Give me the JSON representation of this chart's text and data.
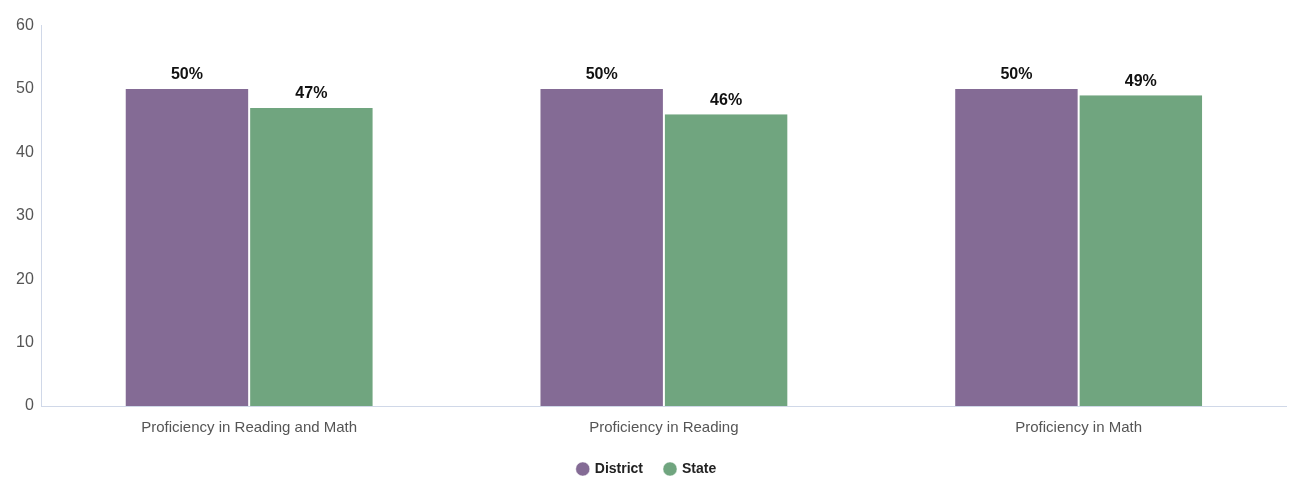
{
  "chart_data": {
    "type": "bar",
    "categories": [
      "Proficiency in Reading and Math",
      "Proficiency in Reading",
      "Proficiency in Math"
    ],
    "series": [
      {
        "name": "District",
        "color": "#846b95",
        "values": [
          50,
          50,
          50
        ],
        "value_labels": [
          "50%",
          "50%",
          "50%"
        ]
      },
      {
        "name": "State",
        "color": "#70a57f",
        "values": [
          47,
          46,
          49
        ],
        "value_labels": [
          "47%",
          "46%",
          "49%"
        ]
      }
    ],
    "ylim": [
      0,
      60
    ],
    "yticks": [
      0,
      10,
      20,
      30,
      40,
      50,
      60
    ],
    "grid": false,
    "legend": "bottom"
  }
}
